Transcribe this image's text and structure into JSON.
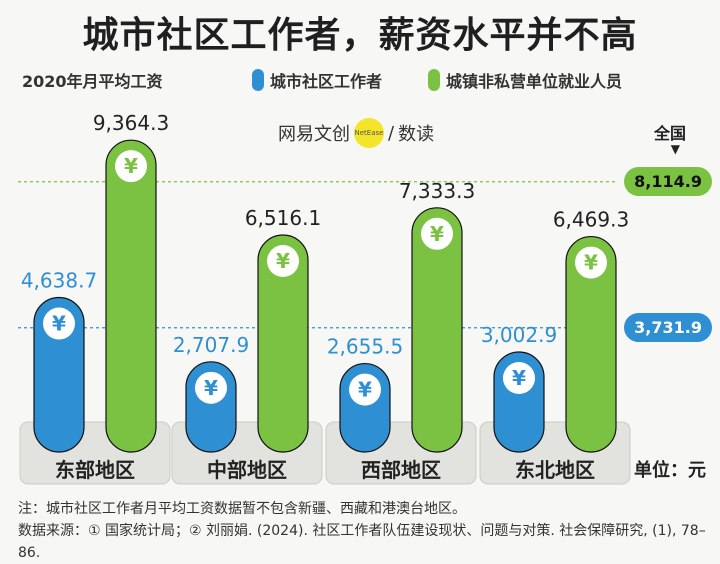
{
  "title": "城市社区工作者，薪资水平并不高",
  "subtitle": "2020年月平均工资",
  "brand": {
    "left": "网易文创",
    "badge": "NetEase",
    "right": "数读"
  },
  "unit_label": "单位：元",
  "notes": {
    "note": "注：城市社区工作者月平均工资数据暂不包含新疆、西藏和港澳台地区。",
    "source": "数据来源：① 国家统计局；② 刘丽娟. (2024). 社区工作者队伍建设现状、问题与对策. 社会保障研究, (1), 78–86."
  },
  "colors": {
    "blue": "#2f8fd3",
    "green": "#7bc242",
    "baseline_bg": "#e2e3de"
  },
  "chart_data": {
    "type": "bar",
    "categories": [
      "东部地区",
      "中部地区",
      "西部地区",
      "东北地区"
    ],
    "series": [
      {
        "name": "城市社区工作者",
        "color": "#2f8fd3",
        "values": [
          4638.7,
          2707.9,
          2655.5,
          3002.9
        ],
        "labels": [
          "4,638.7",
          "2,707.9",
          "2,655.5",
          "3,002.9"
        ]
      },
      {
        "name": "城镇非私营单位就业人员",
        "color": "#7bc242",
        "values": [
          9364.3,
          6516.1,
          7333.3,
          6469.3
        ],
        "labels": [
          "9,364.3",
          "6,516.1",
          "7,333.3",
          "6,469.3"
        ]
      }
    ],
    "reference_lines": [
      {
        "label_top": "全国",
        "value": 8114.9,
        "label": "8,114.9",
        "series": "城镇非私营单位就业人员"
      },
      {
        "value": 3731.9,
        "label": "3,731.9",
        "series": "城市社区工作者"
      }
    ],
    "icon": "¥",
    "ylim": [
      0,
      10000
    ]
  }
}
